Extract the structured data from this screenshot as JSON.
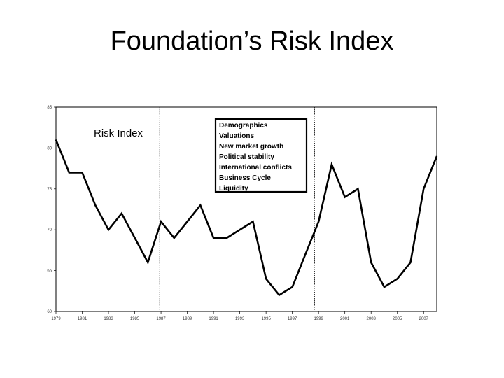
{
  "slide": {
    "title": "Foundation’s Risk Index"
  },
  "chart_data": {
    "type": "line",
    "title": "Risk Index",
    "xlabel": "",
    "ylabel": "",
    "x_ticks": [
      "1979",
      "1981",
      "1983",
      "1985",
      "1987",
      "1989",
      "1991",
      "1993",
      "1995",
      "1997",
      "1999",
      "2001",
      "2003",
      "2005",
      "2007"
    ],
    "y_ticks": [
      60,
      65,
      70,
      75,
      80,
      85
    ],
    "ylim": [
      60,
      85
    ],
    "xlim": [
      1979,
      2008
    ],
    "grid": false,
    "line_color": "#000000",
    "dividers": [
      1986.9,
      1994.7,
      1998.7
    ],
    "legend": {
      "placement": "top-center",
      "items": [
        "Demographics",
        "Valuations",
        "New market growth",
        "Political stability",
        "International conflicts",
        "Business Cycle",
        "Liquidity"
      ]
    },
    "series": [
      {
        "x": [
          1979,
          1980,
          1981,
          1982,
          1983,
          1984,
          1985,
          1986,
          1987,
          1988,
          1989,
          1990,
          1991,
          1992,
          1993,
          1994,
          1995,
          1996,
          1997,
          1998,
          1999,
          2000,
          2001,
          2002,
          2003,
          2004,
          2005,
          2006,
          2007,
          2008
        ],
        "values": [
          81,
          77,
          77,
          73,
          70,
          72,
          69,
          66,
          71,
          69,
          71,
          73,
          69,
          69,
          70,
          71,
          64,
          62,
          63,
          67,
          71,
          78,
          74,
          75,
          66,
          63,
          64,
          66,
          75,
          79
        ]
      }
    ]
  }
}
